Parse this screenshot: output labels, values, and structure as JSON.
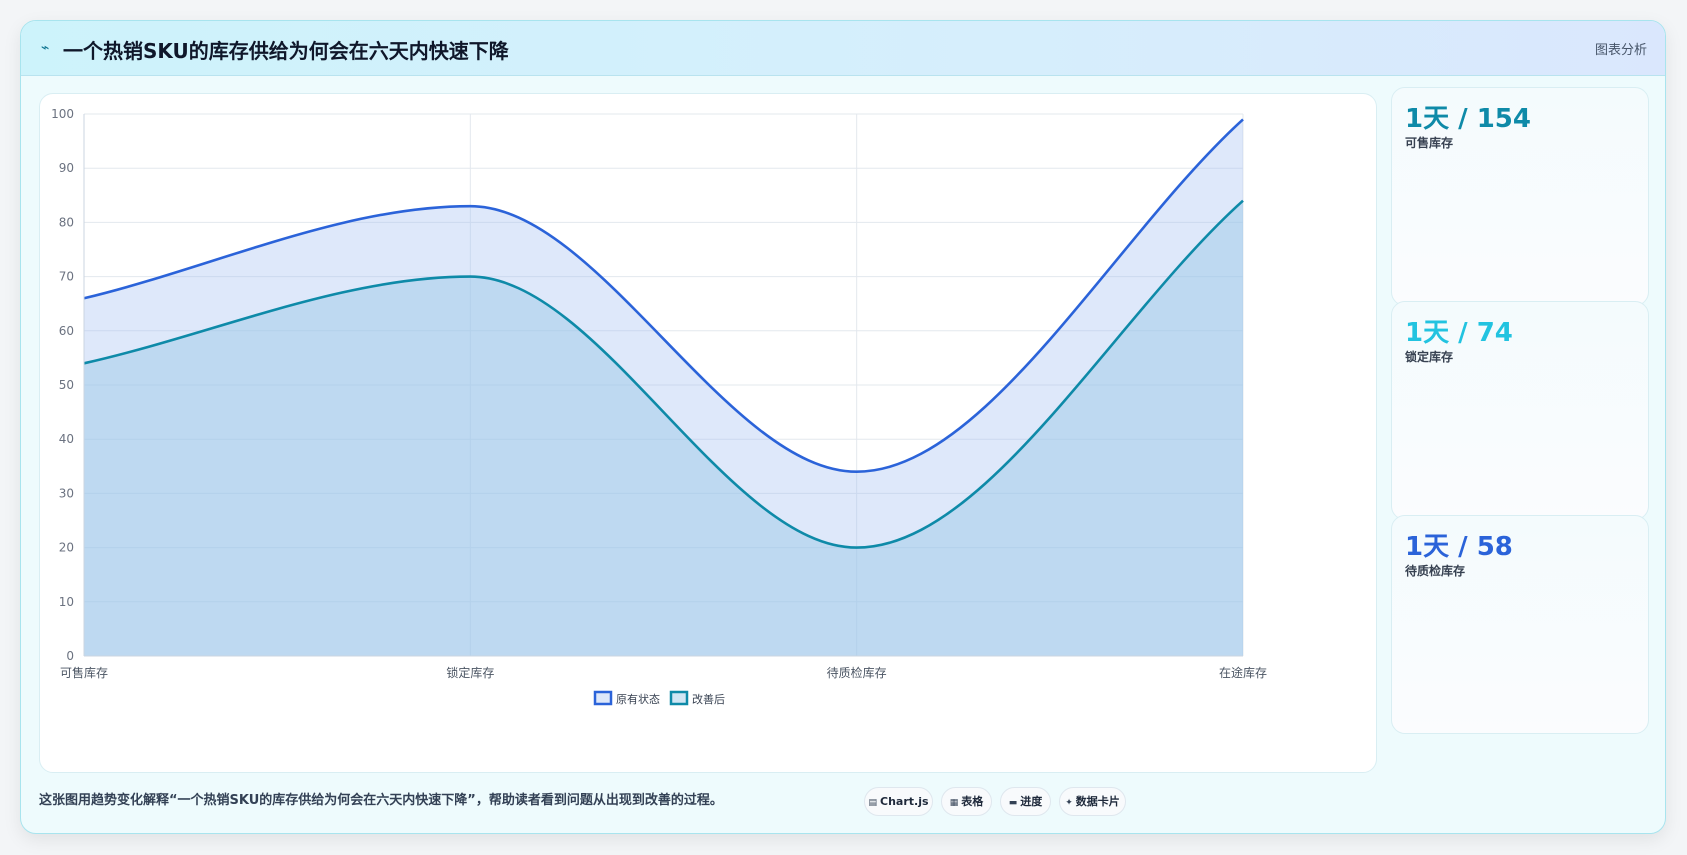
{
  "header": {
    "icon": "⌁",
    "title": "一个热销SKU的库存供给为何会在六天内快速下降",
    "tag": "图表分析"
  },
  "chart_data": {
    "type": "area",
    "categories": [
      "可售库存",
      "锁定库存",
      "待质检库存",
      "在途库存"
    ],
    "series": [
      {
        "name": "原有状态",
        "values": [
          66,
          83,
          34,
          99
        ],
        "color": "#2b63d9"
      },
      {
        "name": "改善后",
        "values": [
          54,
          70,
          20,
          84
        ],
        "color": "#0e8aa8"
      }
    ],
    "ylim": [
      0,
      100
    ],
    "yticks": [
      0,
      10,
      20,
      30,
      40,
      50,
      60,
      70,
      80,
      90,
      100
    ],
    "grid": true,
    "legend": "bottom"
  },
  "kpis": [
    {
      "value": "1天 / 154",
      "label": "可售库存",
      "color": "#0e8aa8"
    },
    {
      "value": "1天 / 74",
      "label": "锁定库存",
      "color": "#22c3e0"
    },
    {
      "value": "1天 / 58",
      "label": "待质检库存",
      "color": "#2b63d9"
    }
  ],
  "footer": {
    "note": "这张图用趋势变化解释“一个热销SKU的库存供给为何会在六天内快速下降”，帮助读者看到问题从出现到改善的过程。",
    "pills": [
      {
        "icon": "▤",
        "label": "Chart.js"
      },
      {
        "icon": "▦",
        "label": "表格"
      },
      {
        "icon": "▬",
        "label": "进度"
      },
      {
        "icon": "✦",
        "label": "数据卡片"
      }
    ]
  }
}
